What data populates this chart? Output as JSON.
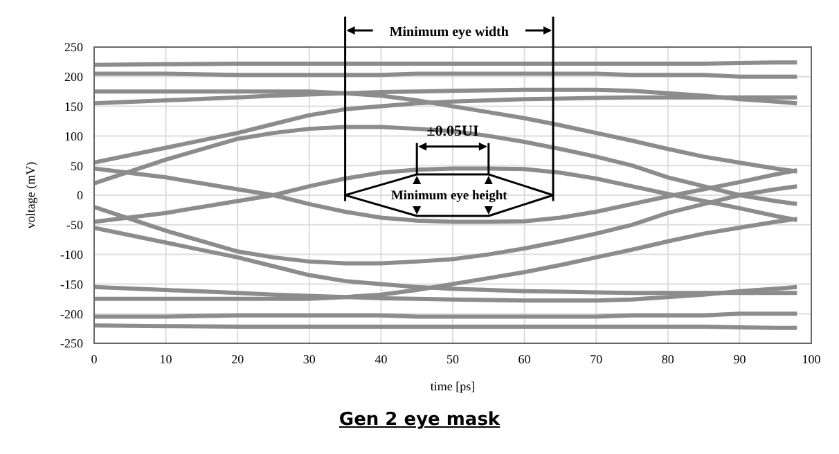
{
  "chart_data": {
    "type": "line",
    "title": "Gen 2 eye mask",
    "xlabel": "time [ps]",
    "ylabel": "voltage (mV)",
    "annotations": [
      "Minimum eye width",
      "±0.05UI",
      "Minimum eye height"
    ],
    "x": [
      0,
      10,
      20,
      25,
      30,
      35,
      40,
      45,
      50,
      55,
      60,
      65,
      70,
      75,
      80,
      85,
      90,
      95,
      98
    ],
    "series": [
      {
        "color": "#8c8c8c",
        "values": [
          220,
          221,
          222,
          222,
          222,
          222,
          222,
          222,
          222,
          222,
          222,
          222,
          222,
          222,
          222,
          222,
          223,
          224,
          224
        ]
      },
      {
        "color": "#8c8c8c",
        "values": [
          205,
          205,
          203,
          203,
          203,
          203,
          203,
          205,
          205,
          205,
          205,
          205,
          205,
          203,
          203,
          203,
          200,
          200,
          200
        ]
      },
      {
        "color": "#8c8c8c",
        "values": [
          155,
          160,
          165,
          168,
          170,
          172,
          174,
          175,
          176,
          177,
          178,
          178,
          178,
          176,
          172,
          168,
          162,
          158,
          155
        ]
      },
      {
        "color": "#8c8c8c",
        "values": [
          55,
          80,
          105,
          120,
          135,
          145,
          150,
          155,
          158,
          160,
          162,
          163,
          164,
          165,
          165,
          165,
          165,
          165,
          165
        ]
      },
      {
        "color": "#8c8c8c",
        "values": [
          20,
          60,
          95,
          105,
          112,
          115,
          115,
          112,
          108,
          100,
          90,
          78,
          65,
          50,
          30,
          15,
          0,
          -10,
          -15
        ]
      },
      {
        "color": "#8c8c8c",
        "values": [
          -45,
          -30,
          -10,
          0,
          15,
          28,
          38,
          43,
          45,
          45,
          44,
          38,
          28,
          15,
          2,
          -10,
          -22,
          -35,
          -42
        ]
      },
      {
        "color": "#8c8c8c",
        "values": [
          175,
          175,
          175,
          175,
          175,
          172,
          168,
          160,
          150,
          140,
          130,
          118,
          105,
          92,
          78,
          65,
          55,
          45,
          40
        ]
      },
      {
        "color": "#8c8c8c",
        "values": [
          -220,
          -221,
          -222,
          -222,
          -222,
          -222,
          -222,
          -222,
          -222,
          -222,
          -222,
          -222,
          -222,
          -222,
          -222,
          -222,
          -223,
          -224,
          -224
        ]
      },
      {
        "color": "#8c8c8c",
        "values": [
          -205,
          -205,
          -203,
          -203,
          -203,
          -203,
          -203,
          -205,
          -205,
          -205,
          -205,
          -205,
          -205,
          -203,
          -203,
          -203,
          -200,
          -200,
          -200
        ]
      },
      {
        "color": "#8c8c8c",
        "values": [
          -155,
          -160,
          -165,
          -168,
          -170,
          -172,
          -174,
          -175,
          -176,
          -177,
          -178,
          -178,
          -178,
          -176,
          -172,
          -168,
          -162,
          -158,
          -155
        ]
      },
      {
        "color": "#8c8c8c",
        "values": [
          -55,
          -80,
          -105,
          -120,
          -135,
          -145,
          -150,
          -155,
          -158,
          -160,
          -162,
          -163,
          -164,
          -165,
          -165,
          -165,
          -165,
          -165,
          -165
        ]
      },
      {
        "color": "#8c8c8c",
        "values": [
          -20,
          -60,
          -95,
          -105,
          -112,
          -115,
          -115,
          -112,
          -108,
          -100,
          -90,
          -78,
          -65,
          -50,
          -30,
          -15,
          0,
          10,
          15
        ]
      },
      {
        "color": "#8c8c8c",
        "values": [
          45,
          30,
          10,
          0,
          -15,
          -28,
          -38,
          -43,
          -45,
          -45,
          -44,
          -38,
          -28,
          -15,
          -2,
          10,
          22,
          35,
          42
        ]
      },
      {
        "color": "#8c8c8c",
        "values": [
          -175,
          -175,
          -175,
          -175,
          -175,
          -172,
          -168,
          -160,
          -150,
          -140,
          -130,
          -118,
          -105,
          -92,
          -78,
          -65,
          -55,
          -45,
          -40
        ]
      },
      {
        "color": "#000000",
        "x": [
          35,
          45,
          55,
          64
        ],
        "values": [
          0,
          35,
          35,
          0
        ]
      },
      {
        "color": "#000000",
        "x": [
          35,
          45,
          55,
          64
        ],
        "values": [
          0,
          -35,
          -35,
          0
        ]
      }
    ],
    "ref_lines": [
      {
        "axis": "x",
        "value": 35,
        "color": "#000000"
      },
      {
        "axis": "x",
        "value": 64,
        "color": "#000000"
      },
      {
        "axis": "x",
        "value": 45,
        "color": "#000000"
      },
      {
        "axis": "x",
        "value": 55,
        "color": "#000000"
      }
    ],
    "xlim": [
      0,
      100
    ],
    "xticks": [
      0,
      10,
      20,
      30,
      40,
      50,
      60,
      70,
      80,
      90,
      100
    ],
    "ylim": [
      -250,
      250
    ],
    "yticks": [
      -250,
      -200,
      -150,
      -100,
      -50,
      0,
      50,
      100,
      150,
      200,
      250
    ],
    "grid": true,
    "legend": false,
    "marker": "none",
    "line_style": "solid"
  }
}
